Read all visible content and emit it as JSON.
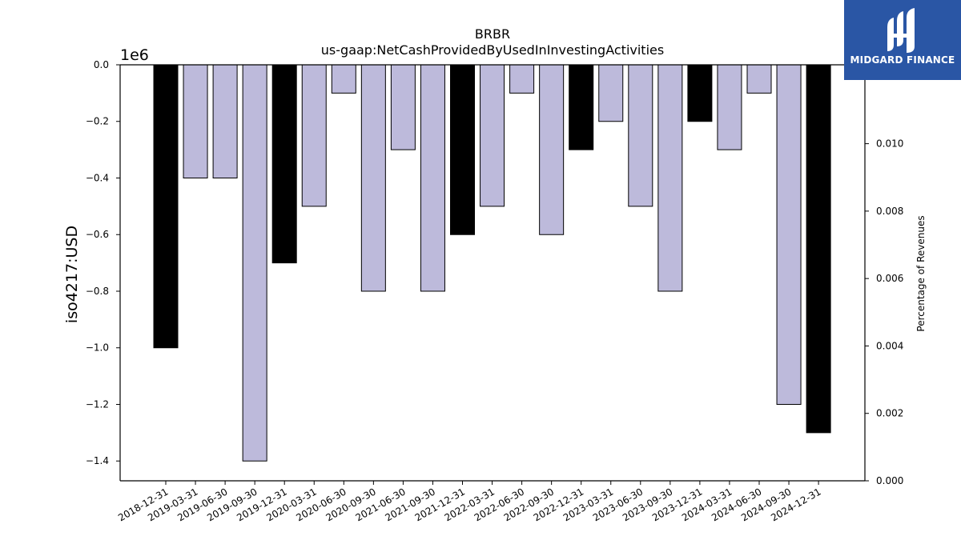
{
  "chart_data": {
    "type": "bar",
    "title": "BRBR",
    "subtitle": "us-gaap:NetCashProvidedByUsedInInvestingActivities",
    "ylabel": "iso4217:USD",
    "y2label": "Percentage of Revenues",
    "y_offset_label": "1e6",
    "ylim": [
      -1.47,
      0.0
    ],
    "y2lim": [
      0.0,
      0.01234
    ],
    "yticks": [
      "0.0",
      "−0.2",
      "−0.4",
      "−0.6",
      "−0.8",
      "−1.0",
      "−1.2",
      "−1.4"
    ],
    "ytick_values": [
      0.0,
      -0.2,
      -0.4,
      -0.6,
      -0.8,
      -1.0,
      -1.2,
      -1.4
    ],
    "y2ticks": [
      "0.000",
      "0.002",
      "0.004",
      "0.006",
      "0.008",
      "0.010"
    ],
    "y2tick_values": [
      0.0,
      0.002,
      0.004,
      0.006,
      0.008,
      0.01
    ],
    "categories": [
      "2018-12-31",
      "2019-03-31",
      "2019-06-30",
      "2019-09-30",
      "2019-12-31",
      "2020-03-31",
      "2020-06-30",
      "2020-09-30",
      "2021-06-30",
      "2021-09-30",
      "2021-12-31",
      "2022-03-31",
      "2022-06-30",
      "2022-09-30",
      "2022-12-31",
      "2023-03-31",
      "2023-06-30",
      "2023-09-30",
      "2023-12-31",
      "2024-03-31",
      "2024-06-30",
      "2024-09-30",
      "2024-12-31"
    ],
    "values": [
      -1.0,
      -0.4,
      -0.4,
      -1.4,
      -0.7,
      -0.5,
      -0.1,
      -0.8,
      -0.3,
      -0.8,
      -0.6,
      -0.5,
      -0.1,
      -0.6,
      -0.3,
      -0.2,
      -0.5,
      -0.8,
      -0.2,
      -0.3,
      -0.1,
      -1.2,
      -1.3
    ],
    "annual": [
      true,
      false,
      false,
      false,
      true,
      false,
      false,
      false,
      false,
      false,
      true,
      false,
      false,
      false,
      true,
      false,
      false,
      false,
      true,
      false,
      false,
      false,
      true
    ],
    "colors": {
      "annual": "#000000",
      "quarterly": "#bdbadb"
    }
  },
  "logo": {
    "text": "MIDGARD FINANCE",
    "bg_color": "#2a56a5"
  }
}
